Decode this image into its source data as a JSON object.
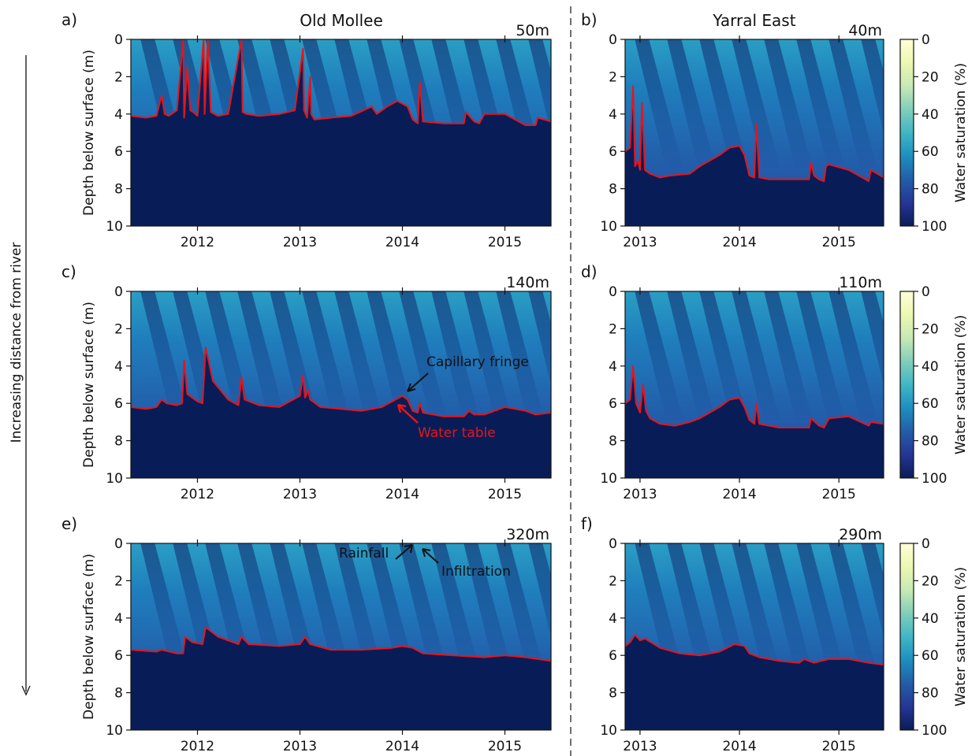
{
  "figure": {
    "side_label": "Increasing distance from river",
    "columns": [
      "Old Mollee",
      "Yarral East"
    ]
  },
  "colorbar": {
    "label": "Water saturation (%)",
    "ticks": [
      0,
      20,
      40,
      60,
      80,
      100
    ]
  },
  "annotations": {
    "capillary_fringe": "Capillary fringe",
    "water_table": "Water table",
    "rainfall": "Rainfall",
    "infiltration": "Infiltration"
  },
  "chart_data": [
    {
      "type": "heatmap",
      "panel": "a)",
      "title": "Old Mollee",
      "distance_label": "50m",
      "ylabel": "Depth below surface (m)",
      "xlim": [
        2011.35,
        2015.45
      ],
      "ylim": [
        10,
        0
      ],
      "xticks": [
        "2012",
        "2013",
        "2014",
        "2015"
      ],
      "yticks": [
        0,
        2,
        4,
        6,
        8,
        10
      ],
      "water_table": {
        "x": [
          2011.35,
          2011.5,
          2011.6,
          2011.65,
          2011.68,
          2011.72,
          2011.8,
          2011.86,
          2011.87,
          2011.9,
          2011.93,
          2011.96,
          2012.0,
          2012.06,
          2012.07,
          2012.1,
          2012.13,
          2012.2,
          2012.3,
          2012.43,
          2012.44,
          2012.48,
          2012.6,
          2012.8,
          2012.95,
          2013.03,
          2013.04,
          2013.07,
          2013.1,
          2013.11,
          2013.14,
          2013.3,
          2013.5,
          2013.7,
          2013.75,
          2013.85,
          2013.95,
          2014.05,
          2014.1,
          2014.15,
          2014.17,
          2014.2,
          2014.4,
          2014.6,
          2014.62,
          2014.7,
          2014.75,
          2014.8,
          2015.0,
          2015.1,
          2015.2,
          2015.3,
          2015.32,
          2015.45
        ],
        "y": [
          4.1,
          4.2,
          4.1,
          3.0,
          4.0,
          4.1,
          3.8,
          0.0,
          4.2,
          1.5,
          3.8,
          3.9,
          4.1,
          0.0,
          4.0,
          0.0,
          3.9,
          4.1,
          4.0,
          0.0,
          3.9,
          4.0,
          4.1,
          4.0,
          3.8,
          0.5,
          3.8,
          4.2,
          2.0,
          4.0,
          4.3,
          4.2,
          4.1,
          3.6,
          4.0,
          3.6,
          3.3,
          3.6,
          4.3,
          4.5,
          2.3,
          4.4,
          4.5,
          4.5,
          3.9,
          4.4,
          4.5,
          4.0,
          4.0,
          4.3,
          4.6,
          4.6,
          4.2,
          4.4
        ]
      }
    },
    {
      "type": "heatmap",
      "panel": "b)",
      "title": "Yarral East",
      "distance_label": "40m",
      "ylabel": "",
      "xlim": [
        2012.85,
        2015.45
      ],
      "ylim": [
        10,
        0
      ],
      "xticks": [
        "2013",
        "2014",
        "2015"
      ],
      "yticks": [
        0,
        2,
        4,
        6,
        8,
        10
      ],
      "water_table": {
        "x": [
          2012.85,
          2012.9,
          2012.93,
          2012.95,
          2012.98,
          2013.0,
          2013.02,
          2013.05,
          2013.1,
          2013.2,
          2013.3,
          2013.5,
          2013.6,
          2013.7,
          2013.8,
          2013.9,
          2014.0,
          2014.05,
          2014.1,
          2014.15,
          2014.17,
          2014.2,
          2014.3,
          2014.5,
          2014.7,
          2014.72,
          2014.75,
          2014.8,
          2014.85,
          2014.87,
          2014.9,
          2015.1,
          2015.3,
          2015.32,
          2015.45
        ],
        "y": [
          6.0,
          5.8,
          2.5,
          6.8,
          6.5,
          7.0,
          3.4,
          7.0,
          7.2,
          7.4,
          7.3,
          7.2,
          6.8,
          6.5,
          6.2,
          5.8,
          5.7,
          6.2,
          7.3,
          7.4,
          4.5,
          7.4,
          7.5,
          7.5,
          7.5,
          6.6,
          7.3,
          7.5,
          7.6,
          6.8,
          6.7,
          7.0,
          7.6,
          7.0,
          7.4
        ]
      }
    },
    {
      "type": "heatmap",
      "panel": "c)",
      "title": "",
      "distance_label": "140m",
      "ylabel": "Depth below surface (m)",
      "xlim": [
        2011.35,
        2015.45
      ],
      "ylim": [
        10,
        0
      ],
      "xticks": [
        "2012",
        "2013",
        "2014",
        "2015"
      ],
      "yticks": [
        0,
        2,
        4,
        6,
        8,
        10
      ],
      "water_table": {
        "x": [
          2011.35,
          2011.5,
          2011.6,
          2011.65,
          2011.7,
          2011.8,
          2011.85,
          2011.87,
          2011.9,
          2012.0,
          2012.05,
          2012.08,
          2012.15,
          2012.3,
          2012.4,
          2012.43,
          2012.46,
          2012.6,
          2012.8,
          2013.0,
          2013.03,
          2013.05,
          2013.08,
          2013.1,
          2013.2,
          2013.4,
          2013.6,
          2013.8,
          2013.9,
          2014.0,
          2014.05,
          2014.1,
          2014.15,
          2014.17,
          2014.2,
          2014.4,
          2014.6,
          2014.65,
          2014.7,
          2014.8,
          2015.0,
          2015.2,
          2015.3,
          2015.45
        ],
        "y": [
          6.2,
          6.3,
          6.2,
          5.8,
          6.0,
          6.1,
          6.0,
          3.7,
          5.5,
          5.9,
          6.0,
          3.0,
          4.8,
          5.8,
          6.1,
          4.6,
          5.8,
          6.1,
          6.2,
          5.6,
          4.5,
          5.7,
          5.3,
          5.8,
          6.2,
          6.3,
          6.4,
          6.2,
          5.9,
          5.6,
          5.8,
          6.4,
          6.5,
          6.0,
          6.5,
          6.7,
          6.7,
          6.4,
          6.6,
          6.6,
          6.2,
          6.4,
          6.6,
          6.5
        ]
      }
    },
    {
      "type": "heatmap",
      "panel": "d)",
      "title": "",
      "distance_label": "110m",
      "ylabel": "",
      "xlim": [
        2012.85,
        2015.45
      ],
      "ylim": [
        10,
        0
      ],
      "xticks": [
        "2013",
        "2014",
        "2015"
      ],
      "yticks": [
        0,
        2,
        4,
        6,
        8,
        10
      ],
      "water_table": {
        "x": [
          2012.85,
          2012.9,
          2012.93,
          2012.96,
          2013.0,
          2013.03,
          2013.06,
          2013.1,
          2013.2,
          2013.35,
          2013.5,
          2013.6,
          2013.7,
          2013.8,
          2013.9,
          2014.0,
          2014.05,
          2014.1,
          2014.15,
          2014.17,
          2014.2,
          2014.4,
          2014.6,
          2014.7,
          2014.72,
          2014.8,
          2014.85,
          2014.9,
          2015.1,
          2015.3,
          2015.32,
          2015.45
        ],
        "y": [
          6.0,
          5.8,
          4.0,
          6.0,
          6.5,
          5.0,
          6.4,
          6.8,
          7.1,
          7.2,
          7.0,
          6.8,
          6.5,
          6.2,
          5.8,
          5.7,
          6.2,
          6.9,
          7.1,
          6.0,
          7.1,
          7.3,
          7.3,
          7.3,
          6.8,
          7.2,
          7.3,
          6.8,
          6.7,
          7.2,
          7.0,
          7.1
        ]
      }
    },
    {
      "type": "heatmap",
      "panel": "e)",
      "title": "",
      "distance_label": "320m",
      "ylabel": "Depth below surface (m)",
      "xlim": [
        2011.35,
        2015.45
      ],
      "ylim": [
        10,
        0
      ],
      "xticks": [
        "2012",
        "2013",
        "2014",
        "2015"
      ],
      "yticks": [
        0,
        2,
        4,
        6,
        8,
        10
      ],
      "water_table": {
        "x": [
          2011.35,
          2011.6,
          2011.65,
          2011.8,
          2011.86,
          2011.88,
          2011.95,
          2012.05,
          2012.08,
          2012.2,
          2012.4,
          2012.43,
          2012.5,
          2012.8,
          2013.0,
          2013.05,
          2013.1,
          2013.3,
          2013.6,
          2013.9,
          2014.0,
          2014.1,
          2014.2,
          2014.5,
          2014.8,
          2015.0,
          2015.2,
          2015.45
        ],
        "y": [
          5.7,
          5.8,
          5.7,
          5.9,
          5.9,
          5.0,
          5.3,
          5.4,
          4.5,
          5.0,
          5.4,
          5.0,
          5.4,
          5.5,
          5.4,
          5.0,
          5.4,
          5.7,
          5.7,
          5.6,
          5.5,
          5.6,
          5.9,
          6.0,
          6.1,
          6.0,
          6.1,
          6.3
        ]
      }
    },
    {
      "type": "heatmap",
      "panel": "f)",
      "title": "",
      "distance_label": "290m",
      "ylabel": "",
      "xlim": [
        2012.85,
        2015.45
      ],
      "ylim": [
        10,
        0
      ],
      "xticks": [
        "2013",
        "2014",
        "2015"
      ],
      "yticks": [
        0,
        2,
        4,
        6,
        8,
        10
      ],
      "water_table": {
        "x": [
          2012.85,
          2012.9,
          2012.95,
          2013.0,
          2013.05,
          2013.2,
          2013.4,
          2013.6,
          2013.8,
          2013.95,
          2014.05,
          2014.1,
          2014.2,
          2014.4,
          2014.6,
          2014.65,
          2014.75,
          2014.9,
          2015.1,
          2015.3,
          2015.45
        ],
        "y": [
          5.5,
          5.3,
          4.9,
          5.2,
          5.1,
          5.6,
          5.9,
          6.0,
          5.8,
          5.4,
          5.5,
          5.9,
          6.1,
          6.3,
          6.4,
          6.2,
          6.4,
          6.2,
          6.2,
          6.4,
          6.5
        ]
      }
    }
  ]
}
